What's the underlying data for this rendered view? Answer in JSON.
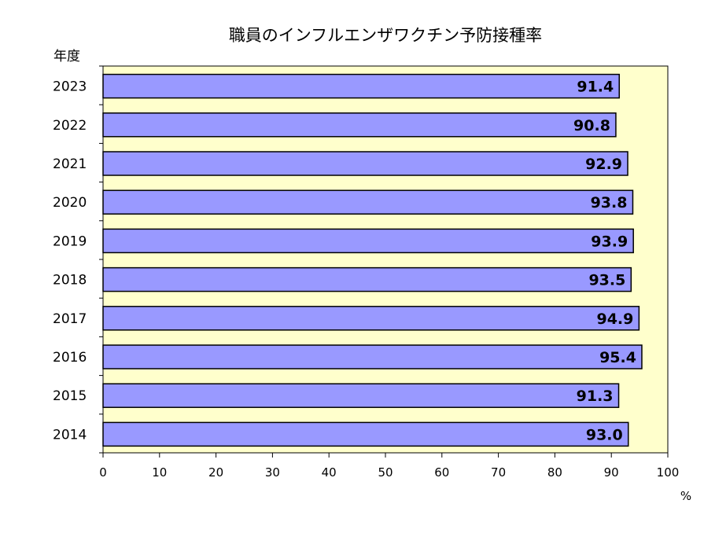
{
  "chart_data": {
    "type": "bar",
    "orientation": "horizontal",
    "title": "職員のインフルエンザワクチン予防接種率",
    "ylabel": "年度",
    "xunit": "%",
    "categories": [
      "2023",
      "2022",
      "2021",
      "2020",
      "2019",
      "2018",
      "2017",
      "2016",
      "2015",
      "2014"
    ],
    "values": [
      91.4,
      90.8,
      92.9,
      93.8,
      93.9,
      93.5,
      94.9,
      95.4,
      91.3,
      93.0
    ],
    "value_labels": [
      "91.4",
      "90.8",
      "92.9",
      "93.8",
      "93.9",
      "93.5",
      "94.9",
      "95.4",
      "91.3",
      "93.0"
    ],
    "xlim": [
      0,
      100
    ],
    "xticks": [
      "0",
      "10",
      "20",
      "30",
      "40",
      "50",
      "60",
      "70",
      "80",
      "90",
      "100"
    ],
    "grid": false,
    "colors": {
      "bar": "#9999ff",
      "plot_background": "#ffffcc",
      "bar_border": "#000000"
    }
  }
}
